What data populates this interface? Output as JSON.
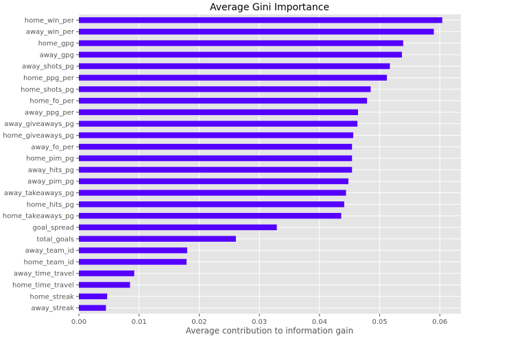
{
  "chart_data": {
    "type": "bar",
    "orientation": "horizontal",
    "title": "Average Gini Importance",
    "xlabel": "Average contribution to information gain",
    "ylabel": "",
    "xlim": [
      0,
      0.0635
    ],
    "xticks": [
      0.0,
      0.01,
      0.02,
      0.03,
      0.04,
      0.05,
      0.06
    ],
    "xtick_labels": [
      "0.00",
      "0.01",
      "0.02",
      "0.03",
      "0.04",
      "0.05",
      "0.06"
    ],
    "grid": true,
    "bar_color": "#5500ff",
    "background_color": "#e5e5e5",
    "categories": [
      "home_win_per",
      "away_win_per",
      "home_gpg",
      "away_gpg",
      "away_shots_pg",
      "home_ppg_per",
      "home_shots_pg",
      "home_fo_per",
      "away_ppg_per",
      "away_giveaways_pg",
      "home_giveaways_pg",
      "away_fo_per",
      "home_pim_pg",
      "away_hits_pg",
      "away_pim_pg",
      "away_takeaways_pg",
      "home_hits_pg",
      "home_takeaways_pg",
      "goal_spread",
      "total_goals",
      "away_team_id",
      "home_team_id",
      "away_time_travel",
      "home_time_travel",
      "home_streak",
      "away_streak"
    ],
    "values": [
      0.0604,
      0.059,
      0.0539,
      0.0537,
      0.0517,
      0.0512,
      0.0485,
      0.0479,
      0.0464,
      0.0463,
      0.0456,
      0.0454,
      0.0454,
      0.0454,
      0.0448,
      0.0444,
      0.0441,
      0.0436,
      0.0329,
      0.0261,
      0.018,
      0.0179,
      0.0092,
      0.0085,
      0.0047,
      0.0045
    ]
  }
}
